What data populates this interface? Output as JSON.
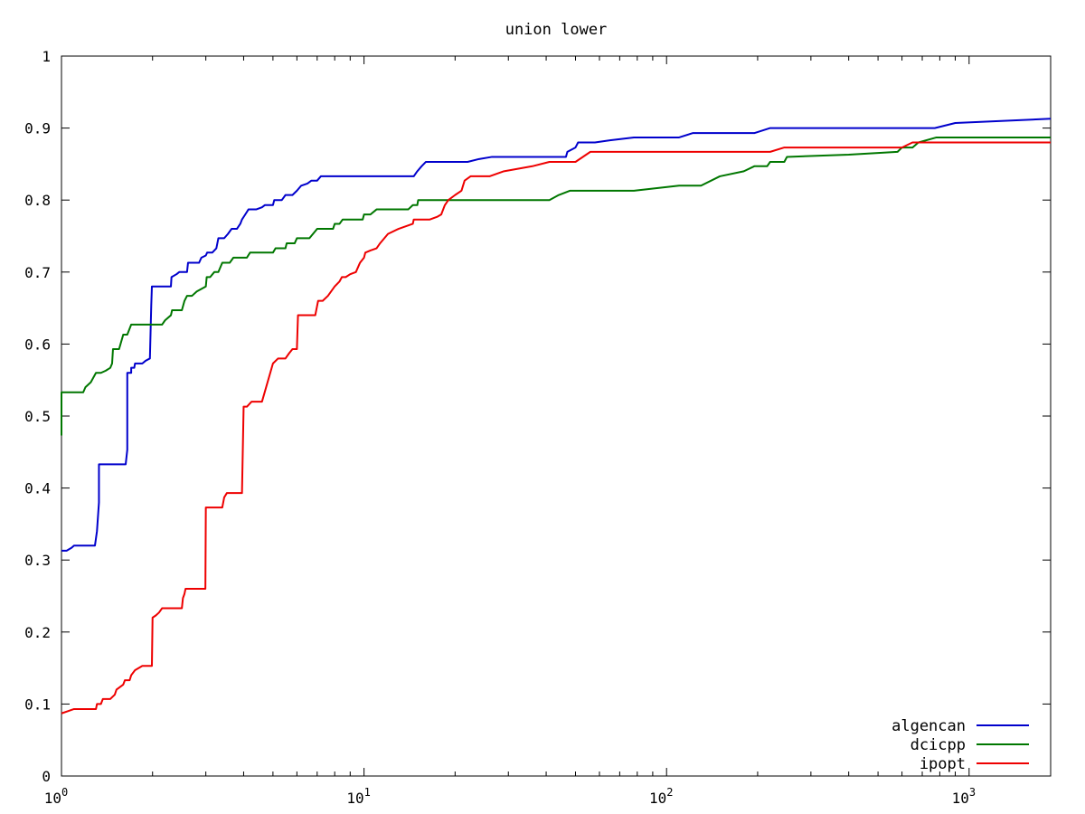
{
  "chart_data": {
    "type": "line",
    "title": "union lower",
    "xlabel": "",
    "ylabel": "",
    "x_scale": "log10",
    "xlim": [
      1,
      1860
    ],
    "ylim": [
      0,
      1
    ],
    "x_ticks": [
      {
        "value": 1,
        "mantissa": "10",
        "exp": "0"
      },
      {
        "value": 10,
        "mantissa": "10",
        "exp": "1"
      },
      {
        "value": 100,
        "mantissa": "10",
        "exp": "2"
      },
      {
        "value": 1000,
        "mantissa": "10",
        "exp": "3"
      }
    ],
    "y_ticks": [
      {
        "value": 0,
        "label": "0"
      },
      {
        "value": 0.1,
        "label": "0.1"
      },
      {
        "value": 0.2,
        "label": "0.2"
      },
      {
        "value": 0.3,
        "label": "0.3"
      },
      {
        "value": 0.4,
        "label": "0.4"
      },
      {
        "value": 0.5,
        "label": "0.5"
      },
      {
        "value": 0.6,
        "label": "0.6"
      },
      {
        "value": 0.7,
        "label": "0.7"
      },
      {
        "value": 0.8,
        "label": "0.8"
      },
      {
        "value": 0.9,
        "label": "0.9"
      },
      {
        "value": 1,
        "label": "1"
      }
    ],
    "grid": false,
    "legend_position": "bottom-right",
    "series": [
      {
        "name": "algencan",
        "color": "#0000cc",
        "points": [
          [
            1.0,
            0.313
          ],
          [
            1.04,
            0.313
          ],
          [
            1.08,
            0.317
          ],
          [
            1.1,
            0.32
          ],
          [
            1.2,
            0.32
          ],
          [
            1.29,
            0.32
          ],
          [
            1.31,
            0.34
          ],
          [
            1.33,
            0.38
          ],
          [
            1.33,
            0.433
          ],
          [
            1.4,
            0.433
          ],
          [
            1.5,
            0.433
          ],
          [
            1.63,
            0.433
          ],
          [
            1.65,
            0.453
          ],
          [
            1.65,
            0.56
          ],
          [
            1.7,
            0.56
          ],
          [
            1.7,
            0.567
          ],
          [
            1.74,
            0.567
          ],
          [
            1.75,
            0.573
          ],
          [
            1.85,
            0.573
          ],
          [
            1.9,
            0.577
          ],
          [
            1.96,
            0.58
          ],
          [
            1.98,
            0.653
          ],
          [
            1.99,
            0.68
          ],
          [
            2.1,
            0.68
          ],
          [
            2.2,
            0.68
          ],
          [
            2.3,
            0.68
          ],
          [
            2.31,
            0.693
          ],
          [
            2.4,
            0.697
          ],
          [
            2.45,
            0.7
          ],
          [
            2.6,
            0.7
          ],
          [
            2.62,
            0.713
          ],
          [
            2.8,
            0.713
          ],
          [
            2.85,
            0.713
          ],
          [
            2.9,
            0.72
          ],
          [
            3.0,
            0.723
          ],
          [
            3.03,
            0.727
          ],
          [
            3.15,
            0.727
          ],
          [
            3.25,
            0.733
          ],
          [
            3.3,
            0.747
          ],
          [
            3.45,
            0.747
          ],
          [
            3.55,
            0.753
          ],
          [
            3.65,
            0.76
          ],
          [
            3.8,
            0.76
          ],
          [
            3.9,
            0.767
          ],
          [
            3.95,
            0.773
          ],
          [
            4.05,
            0.78
          ],
          [
            4.15,
            0.787
          ],
          [
            4.4,
            0.787
          ],
          [
            4.6,
            0.79
          ],
          [
            4.7,
            0.793
          ],
          [
            5.0,
            0.793
          ],
          [
            5.05,
            0.8
          ],
          [
            5.35,
            0.8
          ],
          [
            5.5,
            0.807
          ],
          [
            5.8,
            0.807
          ],
          [
            6.0,
            0.813
          ],
          [
            6.2,
            0.82
          ],
          [
            6.5,
            0.823
          ],
          [
            6.7,
            0.827
          ],
          [
            7.0,
            0.827
          ],
          [
            7.2,
            0.833
          ],
          [
            8.0,
            0.833
          ],
          [
            10.0,
            0.833
          ],
          [
            12.0,
            0.833
          ],
          [
            14.6,
            0.833
          ],
          [
            15.0,
            0.84
          ],
          [
            15.5,
            0.847
          ],
          [
            16.0,
            0.853
          ],
          [
            18.0,
            0.853
          ],
          [
            22.0,
            0.853
          ],
          [
            24.0,
            0.857
          ],
          [
            26.5,
            0.86
          ],
          [
            30.0,
            0.86
          ],
          [
            36.0,
            0.86
          ],
          [
            40.0,
            0.86
          ],
          [
            46.5,
            0.86
          ],
          [
            47.0,
            0.867
          ],
          [
            50.0,
            0.873
          ],
          [
            51.0,
            0.88
          ],
          [
            58.0,
            0.88
          ],
          [
            65.0,
            0.883
          ],
          [
            78.0,
            0.887
          ],
          [
            95.0,
            0.887
          ],
          [
            110.0,
            0.887
          ],
          [
            122.0,
            0.893
          ],
          [
            150.0,
            0.893
          ],
          [
            195.0,
            0.893
          ],
          [
            220.0,
            0.9
          ],
          [
            300.0,
            0.9
          ],
          [
            500.0,
            0.9
          ],
          [
            770.0,
            0.9
          ],
          [
            900.0,
            0.907
          ],
          [
            1860.0,
            0.913
          ]
        ]
      },
      {
        "name": "dcicpp",
        "color": "#007700",
        "points": [
          [
            1.0,
            0.473
          ],
          [
            1.0,
            0.533
          ],
          [
            1.1,
            0.533
          ],
          [
            1.18,
            0.533
          ],
          [
            1.2,
            0.54
          ],
          [
            1.25,
            0.547
          ],
          [
            1.3,
            0.56
          ],
          [
            1.35,
            0.56
          ],
          [
            1.4,
            0.563
          ],
          [
            1.45,
            0.567
          ],
          [
            1.47,
            0.573
          ],
          [
            1.48,
            0.593
          ],
          [
            1.55,
            0.593
          ],
          [
            1.6,
            0.613
          ],
          [
            1.65,
            0.613
          ],
          [
            1.7,
            0.627
          ],
          [
            1.8,
            0.627
          ],
          [
            2.0,
            0.627
          ],
          [
            2.15,
            0.627
          ],
          [
            2.2,
            0.633
          ],
          [
            2.3,
            0.64
          ],
          [
            2.32,
            0.647
          ],
          [
            2.5,
            0.647
          ],
          [
            2.55,
            0.66
          ],
          [
            2.6,
            0.667
          ],
          [
            2.7,
            0.667
          ],
          [
            2.8,
            0.673
          ],
          [
            3.0,
            0.68
          ],
          [
            3.02,
            0.693
          ],
          [
            3.1,
            0.693
          ],
          [
            3.2,
            0.7
          ],
          [
            3.3,
            0.7
          ],
          [
            3.4,
            0.713
          ],
          [
            3.6,
            0.713
          ],
          [
            3.7,
            0.72
          ],
          [
            4.1,
            0.72
          ],
          [
            4.2,
            0.727
          ],
          [
            4.6,
            0.727
          ],
          [
            5.0,
            0.727
          ],
          [
            5.1,
            0.733
          ],
          [
            5.5,
            0.733
          ],
          [
            5.55,
            0.74
          ],
          [
            5.9,
            0.74
          ],
          [
            6.0,
            0.747
          ],
          [
            6.6,
            0.747
          ],
          [
            7.0,
            0.76
          ],
          [
            7.3,
            0.76
          ],
          [
            7.9,
            0.76
          ],
          [
            8.0,
            0.767
          ],
          [
            8.3,
            0.767
          ],
          [
            8.5,
            0.773
          ],
          [
            9.0,
            0.773
          ],
          [
            9.9,
            0.773
          ],
          [
            10.0,
            0.78
          ],
          [
            10.5,
            0.78
          ],
          [
            11.0,
            0.787
          ],
          [
            12.0,
            0.787
          ],
          [
            14.0,
            0.787
          ],
          [
            14.5,
            0.793
          ],
          [
            15.0,
            0.793
          ],
          [
            15.1,
            0.8
          ],
          [
            20.0,
            0.8
          ],
          [
            30.0,
            0.8
          ],
          [
            41.0,
            0.8
          ],
          [
            44.0,
            0.807
          ],
          [
            48.0,
            0.813
          ],
          [
            60.0,
            0.813
          ],
          [
            78.0,
            0.813
          ],
          [
            110.0,
            0.82
          ],
          [
            130.0,
            0.82
          ],
          [
            150.0,
            0.833
          ],
          [
            180.0,
            0.84
          ],
          [
            195.0,
            0.847
          ],
          [
            215.0,
            0.847
          ],
          [
            220.0,
            0.853
          ],
          [
            245.0,
            0.853
          ],
          [
            250.0,
            0.86
          ],
          [
            400.0,
            0.863
          ],
          [
            580.0,
            0.867
          ],
          [
            600.0,
            0.873
          ],
          [
            650.0,
            0.873
          ],
          [
            680.0,
            0.88
          ],
          [
            780.0,
            0.887
          ],
          [
            1000.0,
            0.887
          ],
          [
            1860.0,
            0.887
          ]
        ]
      },
      {
        "name": "ipopt",
        "color": "#ee0000",
        "points": [
          [
            1.0,
            0.087
          ],
          [
            1.05,
            0.09
          ],
          [
            1.1,
            0.093
          ],
          [
            1.2,
            0.093
          ],
          [
            1.3,
            0.093
          ],
          [
            1.31,
            0.1
          ],
          [
            1.35,
            0.1
          ],
          [
            1.37,
            0.107
          ],
          [
            1.45,
            0.107
          ],
          [
            1.5,
            0.113
          ],
          [
            1.52,
            0.12
          ],
          [
            1.6,
            0.127
          ],
          [
            1.62,
            0.133
          ],
          [
            1.68,
            0.133
          ],
          [
            1.7,
            0.14
          ],
          [
            1.75,
            0.147
          ],
          [
            1.85,
            0.153
          ],
          [
            1.99,
            0.153
          ],
          [
            2.0,
            0.22
          ],
          [
            2.05,
            0.223
          ],
          [
            2.1,
            0.227
          ],
          [
            2.15,
            0.233
          ],
          [
            2.5,
            0.233
          ],
          [
            2.52,
            0.247
          ],
          [
            2.55,
            0.253
          ],
          [
            2.57,
            0.26
          ],
          [
            2.8,
            0.26
          ],
          [
            2.99,
            0.26
          ],
          [
            3.0,
            0.373
          ],
          [
            3.2,
            0.373
          ],
          [
            3.4,
            0.373
          ],
          [
            3.45,
            0.387
          ],
          [
            3.52,
            0.393
          ],
          [
            3.95,
            0.393
          ],
          [
            4.0,
            0.513
          ],
          [
            4.1,
            0.513
          ],
          [
            4.25,
            0.52
          ],
          [
            4.6,
            0.52
          ],
          [
            5.0,
            0.573
          ],
          [
            5.2,
            0.58
          ],
          [
            5.5,
            0.58
          ],
          [
            5.65,
            0.587
          ],
          [
            5.8,
            0.593
          ],
          [
            6.0,
            0.593
          ],
          [
            6.05,
            0.64
          ],
          [
            6.5,
            0.64
          ],
          [
            6.9,
            0.64
          ],
          [
            7.05,
            0.66
          ],
          [
            7.3,
            0.66
          ],
          [
            7.6,
            0.667
          ],
          [
            8.0,
            0.68
          ],
          [
            8.3,
            0.687
          ],
          [
            8.45,
            0.693
          ],
          [
            8.7,
            0.693
          ],
          [
            9.0,
            0.697
          ],
          [
            9.4,
            0.7
          ],
          [
            9.7,
            0.713
          ],
          [
            10.0,
            0.72
          ],
          [
            10.1,
            0.727
          ],
          [
            10.5,
            0.73
          ],
          [
            11.0,
            0.733
          ],
          [
            11.3,
            0.74
          ],
          [
            12.0,
            0.753
          ],
          [
            13.0,
            0.76
          ],
          [
            14.5,
            0.767
          ],
          [
            14.6,
            0.773
          ],
          [
            16.0,
            0.773
          ],
          [
            16.5,
            0.773
          ],
          [
            17.5,
            0.777
          ],
          [
            18.0,
            0.78
          ],
          [
            18.5,
            0.793
          ],
          [
            19.0,
            0.8
          ],
          [
            20.0,
            0.807
          ],
          [
            21.0,
            0.813
          ],
          [
            21.5,
            0.827
          ],
          [
            22.5,
            0.833
          ],
          [
            26.0,
            0.833
          ],
          [
            29.0,
            0.84
          ],
          [
            36.0,
            0.847
          ],
          [
            41.0,
            0.853
          ],
          [
            50.0,
            0.853
          ],
          [
            56.0,
            0.867
          ],
          [
            100.0,
            0.867
          ],
          [
            220.0,
            0.867
          ],
          [
            245.0,
            0.873
          ],
          [
            600.0,
            0.873
          ],
          [
            650.0,
            0.88
          ],
          [
            1860.0,
            0.88
          ]
        ]
      }
    ]
  }
}
